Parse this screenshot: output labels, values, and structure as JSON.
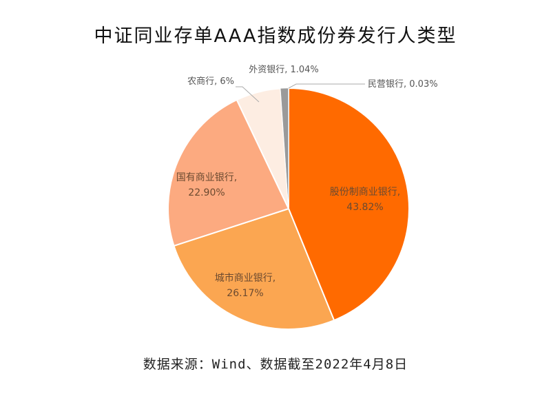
{
  "chart_data": {
    "type": "pie",
    "title": "中证同业存单AAA指数成份券发行人类型",
    "categories": [
      "股份制商业银行",
      "城市商业银行",
      "国有商业银行",
      "农商行",
      "外资银行",
      "民营银行"
    ],
    "values": [
      43.82,
      26.17,
      22.9,
      6,
      1.04,
      0.03
    ],
    "value_labels": [
      "43.82%",
      "26.17%",
      "22.90%",
      "6%",
      "1.04%",
      "0.03%"
    ],
    "colors": [
      "#ff6a00",
      "#fba651",
      "#fcaa80",
      "#fdede2",
      "#9a9a9a",
      "#7f9bb5"
    ],
    "start_angle": "12 o'clock, clockwise",
    "legend": "none (labels on slices)"
  },
  "title": "中证同业存单AAA指数成份券发行人类型",
  "source": "数据来源：Wind、数据截至2022年4月8日"
}
